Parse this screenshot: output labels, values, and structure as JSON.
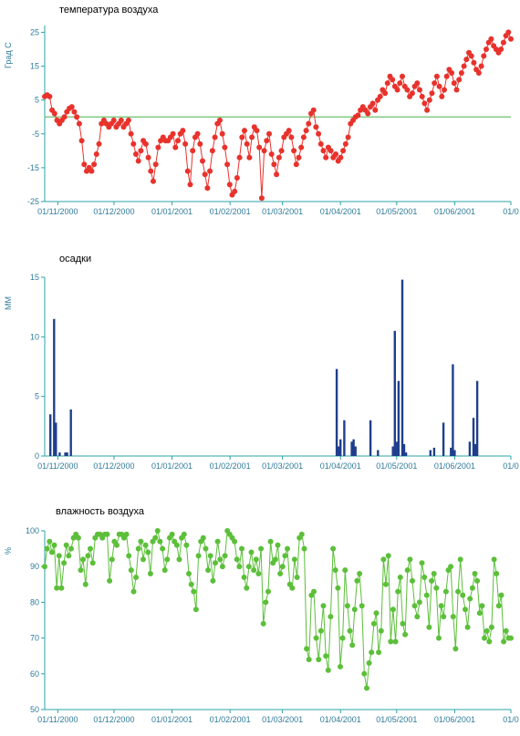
{
  "chart_data": [
    {
      "type": "line",
      "title": "температура воздуха",
      "ylabel": "Град С",
      "ylim": [
        -25,
        27
      ],
      "yticks": [
        -25,
        -15,
        -5,
        5,
        15,
        25
      ],
      "x_start": "2000-10-25",
      "x_ticks": [
        "01/11/2000",
        "01/12/2000",
        "01/01/2001",
        "01/02/2001",
        "01/03/2001",
        "01/04/2001",
        "01/05/2001",
        "01/06/2001",
        "01/0"
      ],
      "x_tick_dates": [
        "2000-11-01",
        "2000-12-01",
        "2001-01-01",
        "2001-02-01",
        "2001-03-01",
        "2001-04-01",
        "2001-05-01",
        "2001-06-01",
        "2001-07-01"
      ],
      "reference_line": 0,
      "colors": {
        "line": "#e8322c",
        "marker": "#e8322c",
        "reference": "#5cb85c",
        "axis": "#2aa4a8",
        "text": "#2f7b9a"
      },
      "values": [
        6,
        6.5,
        6,
        2,
        1,
        -1,
        -2,
        -1,
        0,
        1.5,
        2.5,
        3,
        1.5,
        0,
        -2,
        -7,
        -14,
        -16,
        -15,
        -16,
        -14,
        -11,
        -8,
        -2,
        -1,
        -2,
        -3,
        -2,
        -1,
        -3,
        -2,
        -1,
        -3,
        -2,
        -1,
        -5,
        -8,
        -11,
        -13,
        -10,
        -7,
        -8,
        -12,
        -16,
        -19,
        -14,
        -9,
        -7,
        -6,
        -7,
        -7,
        -6,
        -5,
        -9,
        -7,
        -5,
        -4,
        -8,
        -16,
        -20,
        -10,
        -6,
        -5,
        -8,
        -13,
        -17,
        -21,
        -16,
        -10,
        -6,
        -2,
        -1,
        -5,
        -9,
        -14,
        -20,
        -23,
        -22,
        -18,
        -12,
        -6,
        -4,
        -8,
        -12,
        -6,
        -3,
        -4,
        -9,
        -24,
        -10,
        -7,
        -5,
        -11,
        -14,
        -17,
        -12,
        -10,
        -6,
        -5,
        -4,
        -6,
        -10,
        -14,
        -12,
        -9,
        -6,
        -4,
        -2,
        1,
        2,
        -3,
        -5,
        -8,
        -10,
        -12,
        -9,
        -10,
        -12,
        -11,
        -13,
        -12,
        -10,
        -8,
        -6,
        -2,
        -1,
        0,
        0.5,
        2,
        3,
        2,
        1,
        3,
        4,
        2,
        5,
        6,
        8,
        7,
        10,
        12,
        11,
        9,
        8,
        10,
        12,
        9,
        8,
        6,
        7,
        9,
        10,
        8,
        6,
        4,
        2,
        5,
        7,
        10,
        12,
        9,
        6,
        8,
        12,
        14,
        13,
        10,
        8,
        11,
        13,
        15,
        17,
        19,
        18,
        16,
        14,
        13,
        15,
        18,
        20,
        22,
        23,
        21,
        20,
        19,
        20,
        22,
        24,
        25,
        23
      ],
      "xlim_days": [
        0,
        249
      ]
    },
    {
      "type": "bar",
      "title": "осадки",
      "ylabel": "ММ",
      "ylim": [
        0,
        15
      ],
      "yticks": [
        0,
        5,
        10,
        15
      ],
      "x_ticks": [
        "01/11/2000",
        "01/12/2000",
        "01/01/2001",
        "01/02/2001",
        "01/03/2001",
        "01/04/2001",
        "01/05/2001",
        "01/06/2001",
        "01/0"
      ],
      "colors": {
        "bar": "#1f3f8c",
        "axis": "#2aa4a8",
        "text": "#2f7b9a"
      },
      "bars": [
        {
          "x": "2000-10-28",
          "value": 3.5
        },
        {
          "x": "2000-10-30",
          "value": 11.5
        },
        {
          "x": "2000-10-31",
          "value": 2.8
        },
        {
          "x": "2000-11-02",
          "value": 0.3
        },
        {
          "x": "2000-11-05",
          "value": 0.3
        },
        {
          "x": "2000-11-06",
          "value": 0.3
        },
        {
          "x": "2000-11-08",
          "value": 3.9
        },
        {
          "x": "2001-03-30",
          "value": 7.3
        },
        {
          "x": "2001-03-31",
          "value": 0.8
        },
        {
          "x": "2001-04-01",
          "value": 1.4
        },
        {
          "x": "2001-04-03",
          "value": 3.0
        },
        {
          "x": "2001-04-07",
          "value": 1.2
        },
        {
          "x": "2001-04-08",
          "value": 1.4
        },
        {
          "x": "2001-04-09",
          "value": 0.8
        },
        {
          "x": "2001-04-17",
          "value": 3.0
        },
        {
          "x": "2001-04-21",
          "value": 0.5
        },
        {
          "x": "2001-04-29",
          "value": 0.8
        },
        {
          "x": "2001-04-30",
          "value": 10.5
        },
        {
          "x": "2001-05-01",
          "value": 1.2
        },
        {
          "x": "2001-05-02",
          "value": 6.3
        },
        {
          "x": "2001-05-04",
          "value": 14.8
        },
        {
          "x": "2001-05-05",
          "value": 1.0
        },
        {
          "x": "2001-05-06",
          "value": 0.3
        },
        {
          "x": "2001-05-19",
          "value": 0.5
        },
        {
          "x": "2001-05-21",
          "value": 0.7
        },
        {
          "x": "2001-05-26",
          "value": 2.8
        },
        {
          "x": "2001-05-30",
          "value": 0.7
        },
        {
          "x": "2001-05-31",
          "value": 7.7
        },
        {
          "x": "2001-06-01",
          "value": 0.5
        },
        {
          "x": "2001-06-09",
          "value": 1.2
        },
        {
          "x": "2001-06-11",
          "value": 3.2
        },
        {
          "x": "2001-06-12",
          "value": 1.0
        },
        {
          "x": "2001-06-13",
          "value": 6.3
        }
      ]
    },
    {
      "type": "line",
      "title": "влажность воздуха",
      "ylabel": "%",
      "ylim": [
        50,
        100
      ],
      "yticks": [
        50,
        60,
        70,
        80,
        90,
        100
      ],
      "x_ticks": [
        "01/11/2000",
        "01/12/2000",
        "01/01/2001",
        "01/02/2001",
        "01/03/2001",
        "01/04/2001",
        "01/05/2001",
        "01/06/2001",
        "01/0"
      ],
      "colors": {
        "line": "#5cbf3a",
        "marker": "#5cbf3a",
        "axis": "#2aa4a8",
        "text": "#2f7b9a"
      },
      "values": [
        90,
        95,
        97,
        94,
        96,
        84,
        93,
        84,
        91,
        96,
        93,
        95,
        98,
        99,
        98,
        89,
        92,
        85,
        93,
        95,
        91,
        98,
        99,
        99,
        98,
        99,
        99,
        86,
        92,
        97,
        96,
        99,
        99,
        98,
        99,
        93,
        89,
        83,
        87,
        95,
        97,
        92,
        96,
        94,
        88,
        97,
        98,
        100,
        97,
        95,
        89,
        92,
        98,
        99,
        97,
        96,
        92,
        98,
        99,
        96,
        88,
        85,
        83,
        78,
        93,
        97,
        98,
        95,
        89,
        93,
        86,
        91,
        97,
        92,
        90,
        93,
        100,
        99,
        98,
        97,
        92,
        90,
        95,
        87,
        84,
        90,
        94,
        89,
        92,
        88,
        95,
        74,
        80,
        83,
        97,
        91,
        92,
        96,
        88,
        90,
        93,
        95,
        85,
        84,
        92,
        87,
        98,
        99,
        95,
        67,
        64,
        82,
        83,
        70,
        64,
        72,
        79,
        65,
        61,
        76,
        95,
        89,
        84,
        62,
        70,
        89,
        79,
        72,
        68,
        78,
        86,
        88,
        79,
        60,
        56,
        63,
        66,
        74,
        77,
        66,
        72,
        92,
        85,
        93,
        69,
        78,
        69,
        83,
        87,
        74,
        71,
        89,
        92,
        86,
        79,
        76,
        80,
        91,
        87,
        82,
        73,
        86,
        88,
        84,
        70,
        79,
        76,
        83,
        89,
        90,
        76,
        67,
        83,
        92,
        82,
        78,
        73,
        81,
        84,
        88,
        86,
        77,
        79,
        70,
        72,
        69,
        73,
        92,
        88,
        79,
        82,
        69,
        72,
        70,
        70
      ],
      "xlim_days": [
        0,
        249
      ]
    }
  ]
}
